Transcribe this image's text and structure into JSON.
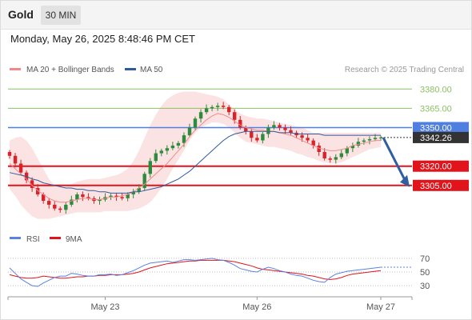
{
  "header": {
    "title": "Gold",
    "timeframe": "30 MIN"
  },
  "datetime": "Monday, May 26, 2025 8:48:46 PM CET",
  "legend": {
    "ma20_label": "MA 20 + Bollinger Bands",
    "ma50_label": "MA 50",
    "rsi_label": "RSI",
    "rsi_ma_label": "9MA"
  },
  "credit": "Research © 2025 Trading Central",
  "colors": {
    "up": "#2e8b3e",
    "down": "#d9232b",
    "ma20": "#f08a8a",
    "ma50": "#2f5b9a",
    "bb_fill": "#fbdada",
    "resistance_green": "#8cc063",
    "pivot_blue": "#4f7fe0",
    "support_red": "#e0141a",
    "current_dark": "#333333",
    "rsi": "#5b82e0",
    "rsi_ma": "#e0141a",
    "arrow": "#2f5fa0"
  },
  "chart_data": [
    {
      "type": "candlestick",
      "title": "Gold",
      "ylim": [
        3275,
        3392
      ],
      "x_labels": [
        {
          "label": "May 23",
          "index": 17
        },
        {
          "label": "May 26",
          "index": 44
        },
        {
          "label": "May 27",
          "index": 66
        }
      ],
      "levels": [
        {
          "value": 3380.0,
          "label": "3380.00",
          "kind": "resistance"
        },
        {
          "value": 3365.0,
          "label": "3365.00",
          "kind": "resistance"
        },
        {
          "value": 3350.0,
          "label": "3350.00",
          "kind": "pivot"
        },
        {
          "value": 3342.26,
          "label": "3342.26",
          "kind": "current"
        },
        {
          "value": 3320.0,
          "label": "3320.00",
          "kind": "support"
        },
        {
          "value": 3305.0,
          "label": "3305.00",
          "kind": "support"
        }
      ],
      "close": [
        3328,
        3322,
        3315,
        3309,
        3303,
        3298,
        3293,
        3290,
        3287,
        3286,
        3290,
        3294,
        3298,
        3296,
        3295,
        3293,
        3294,
        3296,
        3297,
        3296,
        3295,
        3298,
        3300,
        3303,
        3314,
        3324,
        3330,
        3332,
        3334,
        3336,
        3338,
        3344,
        3350,
        3357,
        3362,
        3365,
        3366,
        3367,
        3366,
        3362,
        3356,
        3350,
        3347,
        3342,
        3340,
        3345,
        3350,
        3352,
        3350,
        3348,
        3346,
        3344,
        3342,
        3340,
        3336,
        3331,
        3326,
        3325,
        3327,
        3330,
        3334,
        3336,
        3339,
        3340,
        3341,
        3342,
        3342.26
      ],
      "ma20": [
        3322,
        3318,
        3314,
        3310,
        3305,
        3301,
        3298,
        3295,
        3293,
        3292,
        3292,
        3293,
        3294,
        3295,
        3295,
        3294,
        3294,
        3295,
        3296,
        3296,
        3297,
        3298,
        3300,
        3303,
        3306,
        3310,
        3314,
        3318,
        3322,
        3327,
        3332,
        3337,
        3343,
        3348,
        3352,
        3356,
        3359,
        3361,
        3360,
        3358,
        3355,
        3352,
        3350,
        3349,
        3348,
        3348,
        3347,
        3347,
        3346,
        3345,
        3344,
        3342,
        3340,
        3338,
        3336,
        3334,
        3333,
        3332,
        3332,
        3333,
        3334,
        3336,
        3337,
        3338,
        3339,
        3340,
        3340
      ],
      "bb_upper": [
        3340,
        3342,
        3343,
        3340,
        3334,
        3326,
        3318,
        3310,
        3305,
        3304,
        3304,
        3306,
        3308,
        3309,
        3310,
        3310,
        3310,
        3311,
        3312,
        3313,
        3315,
        3318,
        3324,
        3332,
        3342,
        3352,
        3360,
        3367,
        3372,
        3375,
        3377,
        3378,
        3378,
        3378,
        3377,
        3376,
        3375,
        3374,
        3372,
        3368,
        3364,
        3361,
        3359,
        3358,
        3357,
        3357,
        3356,
        3355,
        3354,
        3353,
        3352,
        3351,
        3350,
        3348,
        3346,
        3346,
        3346,
        3346,
        3346,
        3346,
        3346,
        3346,
        3346,
        3346,
        3346,
        3346,
        3346
      ],
      "bb_lower": [
        3302,
        3297,
        3290,
        3285,
        3281,
        3279,
        3279,
        3279,
        3280,
        3281,
        3282,
        3283,
        3284,
        3284,
        3284,
        3284,
        3284,
        3285,
        3285,
        3285,
        3285,
        3285,
        3286,
        3287,
        3289,
        3292,
        3297,
        3303,
        3310,
        3318,
        3325,
        3332,
        3340,
        3346,
        3350,
        3352,
        3354,
        3354,
        3353,
        3350,
        3346,
        3342,
        3339,
        3338,
        3337,
        3336,
        3335,
        3335,
        3334,
        3333,
        3332,
        3330,
        3329,
        3327,
        3326,
        3324,
        3323,
        3322,
        3322,
        3323,
        3325,
        3327,
        3329,
        3331,
        3333,
        3334,
        3335
      ],
      "ma50": [
        3315,
        3314,
        3313,
        3312,
        3310,
        3309,
        3307,
        3306,
        3305,
        3304,
        3303,
        3303,
        3302,
        3302,
        3301,
        3301,
        3300,
        3300,
        3299,
        3299,
        3299,
        3299,
        3300,
        3300,
        3301,
        3302,
        3303,
        3304,
        3306,
        3308,
        3310,
        3313,
        3316,
        3320,
        3324,
        3328,
        3332,
        3336,
        3340,
        3343,
        3345,
        3346,
        3347,
        3347,
        3347,
        3347,
        3347,
        3347,
        3346,
        3346,
        3346,
        3345,
        3345,
        3345,
        3345,
        3345,
        3344,
        3344,
        3344,
        3344,
        3344,
        3344,
        3344,
        3344,
        3344,
        3344,
        3344
      ],
      "projection": {
        "from": 3342.26,
        "to": 3305
      }
    },
    {
      "type": "line",
      "title": "RSI",
      "ylim": [
        15,
        85
      ],
      "y_ticks": [
        70,
        50,
        30
      ],
      "series": [
        {
          "name": "RSI",
          "values": [
            56,
            48,
            40,
            35,
            30,
            29,
            34,
            38,
            42,
            44,
            44,
            48,
            47,
            45,
            44,
            44,
            46,
            46,
            47,
            45,
            46,
            49,
            52,
            56,
            60,
            63,
            64,
            65,
            66,
            64,
            66,
            68,
            68,
            67,
            68,
            69,
            70,
            68,
            67,
            64,
            60,
            55,
            53,
            51,
            50,
            54,
            57,
            55,
            52,
            50,
            47,
            45,
            44,
            41,
            38,
            36,
            35,
            42,
            47,
            49,
            51,
            52,
            53,
            54,
            55,
            56,
            57
          ]
        },
        {
          "name": "9MA",
          "values": [
            46,
            44,
            42,
            41,
            41,
            42,
            44,
            43,
            42,
            41,
            41,
            42,
            43,
            43,
            44,
            44,
            45,
            45,
            46,
            46,
            46,
            47,
            48,
            50,
            53,
            56,
            58,
            60,
            62,
            63,
            64,
            65,
            66,
            66,
            67,
            67,
            67,
            67,
            67,
            66,
            65,
            63,
            61,
            59,
            56,
            54,
            53,
            52,
            51,
            50,
            49,
            48,
            47,
            45,
            44,
            42,
            40,
            39,
            40,
            42,
            45,
            47,
            48,
            49,
            50,
            51,
            52
          ]
        }
      ]
    }
  ]
}
